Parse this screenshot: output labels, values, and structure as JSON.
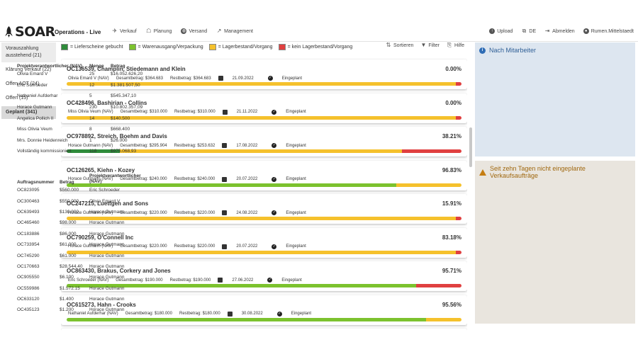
{
  "app": {
    "brand": "SOAR",
    "title": "Operations - Live"
  },
  "nav": [
    {
      "label": "Verkauf",
      "icon": "plane-icon"
    },
    {
      "label": "Planung",
      "icon": "chat-icon"
    },
    {
      "label": "Versand",
      "icon": "globe-icon"
    },
    {
      "label": "Management",
      "icon": "chart-line-icon"
    }
  ],
  "user_nav": [
    {
      "label": "Upload",
      "icon": "upload-icon"
    },
    {
      "label": "DE",
      "icon": "language-icon"
    },
    {
      "label": "Abmelden",
      "icon": "logout-icon"
    },
    {
      "label": "Rumen.Mittelstaedt",
      "icon": "user-icon"
    }
  ],
  "sidebar": [
    {
      "label": "Vorauszahlung ausstehend (21)",
      "active": false
    },
    {
      "label": "Klärung Verkauf (22)",
      "active": false
    },
    {
      "label": "Offen AOT (24)",
      "active": false
    },
    {
      "label": "Offen (15)",
      "active": false
    },
    {
      "label": "Geplant (341)",
      "active": true
    }
  ],
  "legend": [
    {
      "label": "= Lieferscheine gebucht",
      "color": "#2e8b3a"
    },
    {
      "label": "= Warenausgang/Verpackung",
      "color": "#7cc22e"
    },
    {
      "label": "= Lagerbestand/Vorgang",
      "color": "#f5c12c"
    },
    {
      "label": "= kein Lagerbestand/Vorgang",
      "color": "#e04040"
    }
  ],
  "toolbar": {
    "sort_label": "Sortieren",
    "filter_label": "Filter",
    "help_label": "Hilfe"
  },
  "orders": [
    {
      "title": "OC136539, Champlin, Stiedemann and Klein",
      "pct": "0.00%",
      "owner": "Olivia Emard V (NAV)",
      "total": "Gesamtbetrag: $364.683",
      "rest": "Restbetrag: $364.683",
      "date": "21.09.2022",
      "status": "Eingeplant",
      "bar": [
        {
          "c": "#f5c12c",
          "v": 98.5
        },
        {
          "c": "#e04040",
          "v": 1.5
        }
      ]
    },
    {
      "title": "OC428496, Bashirian - Collins",
      "pct": "0.00%",
      "owner": "Miss Olivia Veum (NAV)",
      "total": "Gesamtbetrag: $310.000",
      "rest": "Restbetrag: $310.000",
      "date": "21.11.2022",
      "status": "Eingeplant",
      "bar": [
        {
          "c": "#f5c12c",
          "v": 98.5
        },
        {
          "c": "#e04040",
          "v": 1.5
        }
      ]
    },
    {
      "title": "OC978892, Streich, Boehm and Davis",
      "pct": "38.21%",
      "owner": "Horace Gutmann (NAV)",
      "total": "Gesamtbetrag: $295.904",
      "rest": "Restbetrag: $253.632",
      "date": "17.08.2022",
      "status": "Eingeplant",
      "bar": [
        {
          "c": "#2e8b3a",
          "v": 13.5
        },
        {
          "c": "#f5c12c",
          "v": 71.5
        },
        {
          "c": "#e04040",
          "v": 15
        }
      ]
    },
    {
      "title": "OC126265, Kiehn - Kozey",
      "pct": "96.83%",
      "owner": "Horace Gutmann (NAV)",
      "total": "Gesamtbetrag: $240.000",
      "rest": "Restbetrag: $240.000",
      "date": "20.07.2022",
      "status": "Eingeplant",
      "bar": [
        {
          "c": "#7cc22e",
          "v": 83.5
        },
        {
          "c": "#f5c12c",
          "v": 16.5
        }
      ]
    },
    {
      "title": "OC247215, Luettgen and Sons",
      "pct": "15.91%",
      "owner": "Horace Gutmann (NAV)",
      "total": "Gesamtbetrag: $220.000",
      "rest": "Restbetrag: $220.000",
      "date": "24.08.2022",
      "status": "Eingeplant",
      "bar": [
        {
          "c": "#f5c12c",
          "v": 98.5
        },
        {
          "c": "#e04040",
          "v": 1.5
        }
      ]
    },
    {
      "title": "OC790259, O'Connell Inc",
      "pct": "83.18%",
      "owner": "Horace Gutmann (NAV)",
      "total": "Gesamtbetrag: $220.000",
      "rest": "Restbetrag: $220.000",
      "date": "20.07.2022",
      "status": "Eingeplant",
      "bar": [
        {
          "c": "#f5c12c",
          "v": 98.5
        },
        {
          "c": "#e04040",
          "v": 1.5
        }
      ]
    },
    {
      "title": "OC863430, Brakus, Corkery and Jones",
      "pct": "95.71%",
      "owner": "Eric Schroeder (NAV)",
      "total": "Gesamtbetrag: $190.000",
      "rest": "Restbetrag: $190.000",
      "date": "27.06.2022",
      "status": "Eingeplant",
      "bar": [
        {
          "c": "#7cc22e",
          "v": 88.5
        },
        {
          "c": "#e04040",
          "v": 11.5
        }
      ]
    },
    {
      "title": "OC615273, Hahn - Crooks",
      "pct": "95.56%",
      "owner": "Nathaniel Aufderhar (NAV)",
      "total": "Gesamtbetrag: $180.000",
      "rest": "Restbetrag: $180.000",
      "date": "30.08.2022",
      "status": "Eingeplant",
      "bar": [
        {
          "c": "#7cc22e",
          "v": 91
        },
        {
          "c": "#f5c12c",
          "v": 9
        }
      ]
    }
  ],
  "panel_staff": {
    "title": "Nach Mitarbeiter",
    "headers": [
      "Projektverantwortlicher (NAV)",
      "Menge",
      "Betrag"
    ],
    "rows": [
      [
        "Olivia Emard V",
        "25",
        "$16.052.626,20"
      ],
      [
        "Eric Schroeder",
        "12",
        "$1.381.507,50"
      ],
      [
        "Nathaniel Aufderhar",
        "5",
        "$545.347,10"
      ],
      [
        "Horace Gutmann",
        "230",
        "$10.802.357,09"
      ],
      [
        "Angelica Pollich II",
        "14",
        "$140.500"
      ],
      [
        "Miss Olivia Veum",
        "8",
        "$668.400"
      ],
      [
        "Mrs. Donnie Heidenreich",
        "1",
        "$26.000"
      ],
      [
        "Vollständig kommissioniert",
        "118",
        "$975.068,93"
      ]
    ]
  },
  "panel_unplanned": {
    "title": "Seit zehn Tagen nicht eingeplante Verkaufsaufträge",
    "headers": [
      "Auftragsnummer",
      "Betrag",
      "Projektverantwortlicher (NAV)"
    ],
    "rows": [
      [
        "OC823095",
        "$560.000",
        "Eric Schroeder"
      ],
      [
        "OC300463",
        "$550.000",
        "Olivia Emard V"
      ],
      [
        "OC639493",
        "$130.000",
        "Horace Gutmann"
      ],
      [
        "OC465460",
        "$98.000",
        "Horace Gutmann"
      ],
      [
        "OC183886",
        "$86.000",
        "Horace Gutmann"
      ],
      [
        "OC733954",
        "$61.000",
        "Horace Gutmann"
      ],
      [
        "OC745290",
        "$61.000",
        "Horace Gutmann"
      ],
      [
        "OC170663",
        "$28.544.40",
        "Horace Gutmann"
      ],
      [
        "OC905550",
        "$6.100",
        "Horace Gutmann"
      ],
      [
        "OC559986",
        "$1.572.15",
        "Horace Gutmann"
      ],
      [
        "OC633120",
        "$1.400",
        "Horace Gutmann"
      ],
      [
        "OC435123",
        "$1.200",
        "Horace Gutmann"
      ]
    ]
  }
}
